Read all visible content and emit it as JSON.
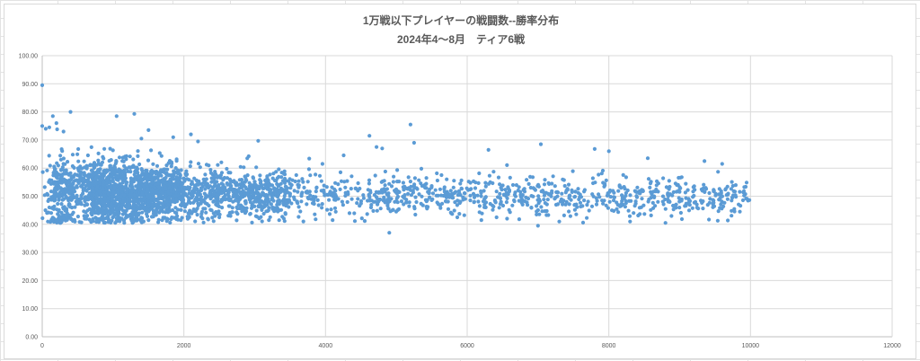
{
  "chart_data": {
    "type": "scatter",
    "title": "1万戦以下プレイヤーの戦闘数--勝率分布",
    "subtitle": "2024年4～8月　ティア6戦",
    "xlabel": "",
    "ylabel": "",
    "xlim": [
      0,
      12000
    ],
    "ylim": [
      0,
      100
    ],
    "x_ticks": [
      "0",
      "2000",
      "4000",
      "6000",
      "8000",
      "10000",
      "12000"
    ],
    "y_ticks": [
      "0.00",
      "10.00",
      "20.00",
      "30.00",
      "40.00",
      "50.00",
      "60.00",
      "70.00",
      "80.00",
      "90.00",
      "100.00"
    ],
    "grid": true,
    "legend": "none",
    "marker_color": "#5b9bd5",
    "series": [
      {
        "points": [
          [
            0,
            89.5
          ],
          [
            0,
            75
          ],
          [
            50,
            74
          ],
          [
            100,
            74.5
          ],
          [
            150,
            78.5
          ],
          [
            200,
            76
          ],
          [
            210,
            73.8
          ],
          [
            300,
            73
          ],
          [
            400,
            80
          ],
          [
            1050,
            78.5
          ],
          [
            1300,
            79.3
          ],
          [
            1500,
            73.5
          ],
          [
            1400,
            70.5
          ],
          [
            1850,
            71
          ],
          [
            2100,
            72
          ],
          [
            2200,
            69.5
          ],
          [
            3050,
            69.7
          ],
          [
            4620,
            71.5
          ],
          [
            4720,
            67.5
          ],
          [
            4800,
            67
          ],
          [
            5200,
            75.5
          ],
          [
            5250,
            69
          ],
          [
            6300,
            66.5
          ],
          [
            7040,
            68.5
          ],
          [
            7800,
            66.8
          ],
          [
            8000,
            66
          ],
          [
            8550,
            63.5
          ],
          [
            9350,
            62.5
          ],
          [
            9600,
            61.5
          ],
          [
            80,
            41
          ],
          [
            240,
            43
          ],
          [
            600,
            42
          ],
          [
            1500,
            41.5
          ],
          [
            2500,
            42.5
          ],
          [
            3200,
            41.5
          ],
          [
            4100,
            41.5
          ],
          [
            4900,
            37
          ],
          [
            6200,
            41.5
          ],
          [
            7000,
            39.5
          ],
          [
            7300,
            41
          ],
          [
            8300,
            41
          ],
          [
            8800,
            40.5
          ],
          [
            9850,
            44.5
          ]
        ]
      }
    ]
  }
}
